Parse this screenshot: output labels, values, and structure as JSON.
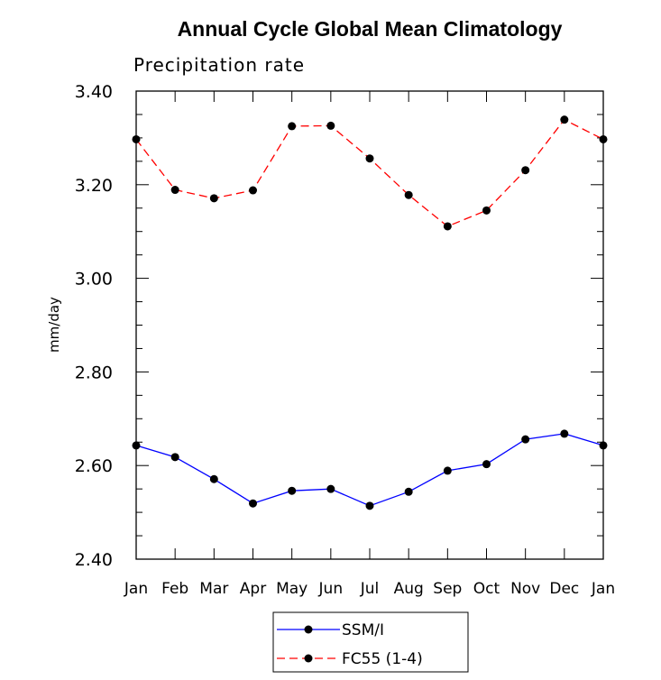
{
  "chart_data": {
    "type": "line",
    "title": "Annual Cycle Global Mean Climatology",
    "subtitle": "Precipitation rate",
    "xlabel": "",
    "ylabel": "mm/day",
    "categories": [
      "Jan",
      "Feb",
      "Mar",
      "Apr",
      "May",
      "Jun",
      "Jul",
      "Aug",
      "Sep",
      "Oct",
      "Nov",
      "Dec",
      "Jan"
    ],
    "ylim": [
      2.4,
      3.4
    ],
    "yticks": [
      "2.40",
      "2.60",
      "2.80",
      "3.00",
      "3.20",
      "3.40"
    ],
    "grid": false,
    "legend_position": "bottom",
    "series": [
      {
        "name": "SSM/I",
        "color": "#0000ff",
        "dash": "solid",
        "marker": "circle",
        "values": [
          2.643,
          2.618,
          2.571,
          2.519,
          2.546,
          2.55,
          2.514,
          2.544,
          2.589,
          2.603,
          2.656,
          2.668,
          2.643
        ]
      },
      {
        "name": "FC55 (1-4)",
        "color": "#ff0000",
        "dash": "dashed",
        "marker": "circle",
        "values": [
          3.297,
          3.189,
          3.171,
          3.188,
          3.325,
          3.326,
          3.256,
          3.178,
          3.111,
          3.145,
          3.231,
          3.339,
          3.297
        ]
      }
    ]
  }
}
